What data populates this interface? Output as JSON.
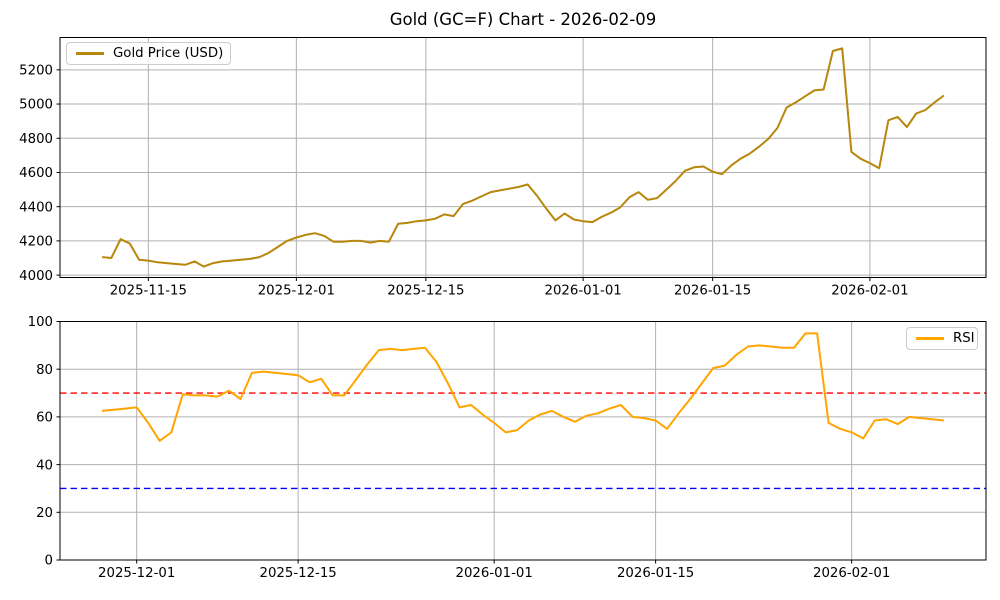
{
  "figure": {
    "title": "Gold (GC=F) Chart - 2026-02-09",
    "background": "#ffffff",
    "grid_color": "#b0b0b0",
    "spine_color": "#000000",
    "text_color": "#000000"
  },
  "chart_data": [
    {
      "type": "line",
      "title": "Gold (GC=F) Chart - 2026-02-09",
      "xlabel": "",
      "ylabel": "",
      "grid": true,
      "legend_position": "upper left",
      "start_date": "2025-11-10",
      "frequency": "daily",
      "xticks": [
        "2025-11-15",
        "2025-12-01",
        "2025-12-15",
        "2026-01-01",
        "2026-01-15",
        "2026-02-01"
      ],
      "yticks": [
        4000,
        4200,
        4400,
        4600,
        4800,
        5000,
        5200
      ],
      "ylim": [
        3986,
        5389
      ],
      "x_margin_days": 4.55,
      "series": [
        {
          "name": "Gold Price (USD)",
          "color": "#B8860B",
          "line_width": 2,
          "values": [
            4105,
            4100,
            4210,
            4185,
            4090,
            4085,
            4075,
            4070,
            4065,
            4060,
            4080,
            4050,
            4070,
            4080,
            4085,
            4090,
            4095,
            4105,
            4130,
            4165,
            4200,
            4220,
            4235,
            4245,
            4230,
            4195,
            4195,
            4200,
            4200,
            4190,
            4200,
            4195,
            4300,
            4305,
            4315,
            4320,
            4330,
            4355,
            4345,
            4415,
            4435,
            4460,
            4485,
            4495,
            4505,
            4515,
            4530,
            4465,
            4390,
            4320,
            4360,
            4325,
            4315,
            4310,
            4340,
            4365,
            4395,
            4455,
            4485,
            4440,
            4450,
            4500,
            4550,
            4610,
            4630,
            4635,
            4605,
            4590,
            4640,
            4680,
            4710,
            4750,
            4795,
            4860,
            4980,
            5010,
            5045,
            5080,
            5085,
            5310,
            5325,
            4720,
            4680,
            4655,
            4625,
            4905,
            4925,
            4865,
            4945,
            4965,
            5010,
            5050
          ]
        }
      ]
    },
    {
      "type": "line",
      "title": "",
      "xlabel": "",
      "ylabel": "",
      "grid": true,
      "legend_position": "upper right",
      "start_date": "2025-11-28",
      "frequency": "daily",
      "xticks": [
        "2025-12-01",
        "2025-12-15",
        "2026-01-01",
        "2026-01-15",
        "2026-02-01"
      ],
      "yticks": [
        0,
        20,
        40,
        60,
        80,
        100
      ],
      "ylim": [
        0,
        100
      ],
      "x_margin_days": 3.65,
      "hlines": [
        {
          "name": "overbought",
          "y": 70,
          "color": "#ff0000",
          "style": "dashed"
        },
        {
          "name": "oversold",
          "y": 30,
          "color": "#0000ff",
          "style": "dashed"
        }
      ],
      "series": [
        {
          "name": "RSI",
          "color": "#FFA500",
          "line_width": 2,
          "values": [
            62.5,
            63,
            63.5,
            64,
            57.5,
            50,
            53.5,
            69.5,
            69,
            69,
            68.5,
            71,
            67.5,
            78.5,
            79,
            78.5,
            78,
            77.5,
            74.5,
            76,
            69,
            69,
            75.5,
            82,
            88,
            88.5,
            88,
            88.5,
            89,
            83,
            74,
            64,
            65,
            61,
            57.5,
            53.5,
            54.5,
            58.5,
            61,
            62.5,
            60,
            58,
            60.5,
            61.5,
            63.5,
            65,
            60,
            59.5,
            58.5,
            55,
            61.5,
            67.5,
            74,
            80.5,
            81.5,
            86,
            89.5,
            90,
            89.5,
            89,
            89,
            95,
            95,
            57.5,
            55,
            53.5,
            51,
            58.5,
            59,
            57,
            60,
            59.5,
            59,
            58.5
          ]
        }
      ]
    }
  ]
}
